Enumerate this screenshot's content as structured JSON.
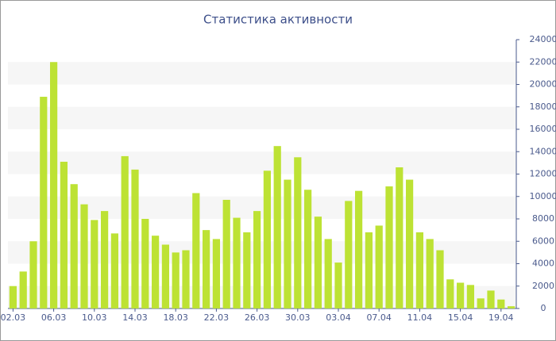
{
  "chart_data": {
    "type": "bar",
    "title": "Статистика активности",
    "categories": [
      "02.03",
      null,
      null,
      null,
      "06.03",
      null,
      null,
      null,
      "10.03",
      null,
      null,
      null,
      "14.03",
      null,
      null,
      null,
      "18.03",
      null,
      null,
      null,
      "22.03",
      null,
      null,
      null,
      "26.03",
      null,
      null,
      null,
      "30.03",
      null,
      null,
      null,
      "03.04",
      null,
      null,
      null,
      "07.04",
      null,
      null,
      null,
      "11.04",
      null,
      null,
      null,
      "15.04",
      null,
      null,
      null,
      "19.04",
      null
    ],
    "values": [
      2000,
      3300,
      6000,
      18900,
      22000,
      13100,
      11100,
      9300,
      7900,
      8700,
      6700,
      13600,
      12400,
      8000,
      6500,
      5700,
      5000,
      5200,
      10300,
      7000,
      6200,
      9700,
      8100,
      6800,
      8700,
      12300,
      14500,
      11500,
      13500,
      10600,
      8200,
      6200,
      4100,
      9600,
      10500,
      6800,
      7400,
      10900,
      12600,
      11500,
      6800,
      6200,
      5200,
      2600,
      2300,
      2100,
      900,
      1600,
      800,
      200
    ],
    "color": "#bde234",
    "ylim": [
      0,
      24000
    ],
    "yticks": [
      0,
      2000,
      4000,
      6000,
      8000,
      10000,
      12000,
      14000,
      16000,
      18000,
      20000,
      22000,
      24000
    ],
    "grid": true
  }
}
